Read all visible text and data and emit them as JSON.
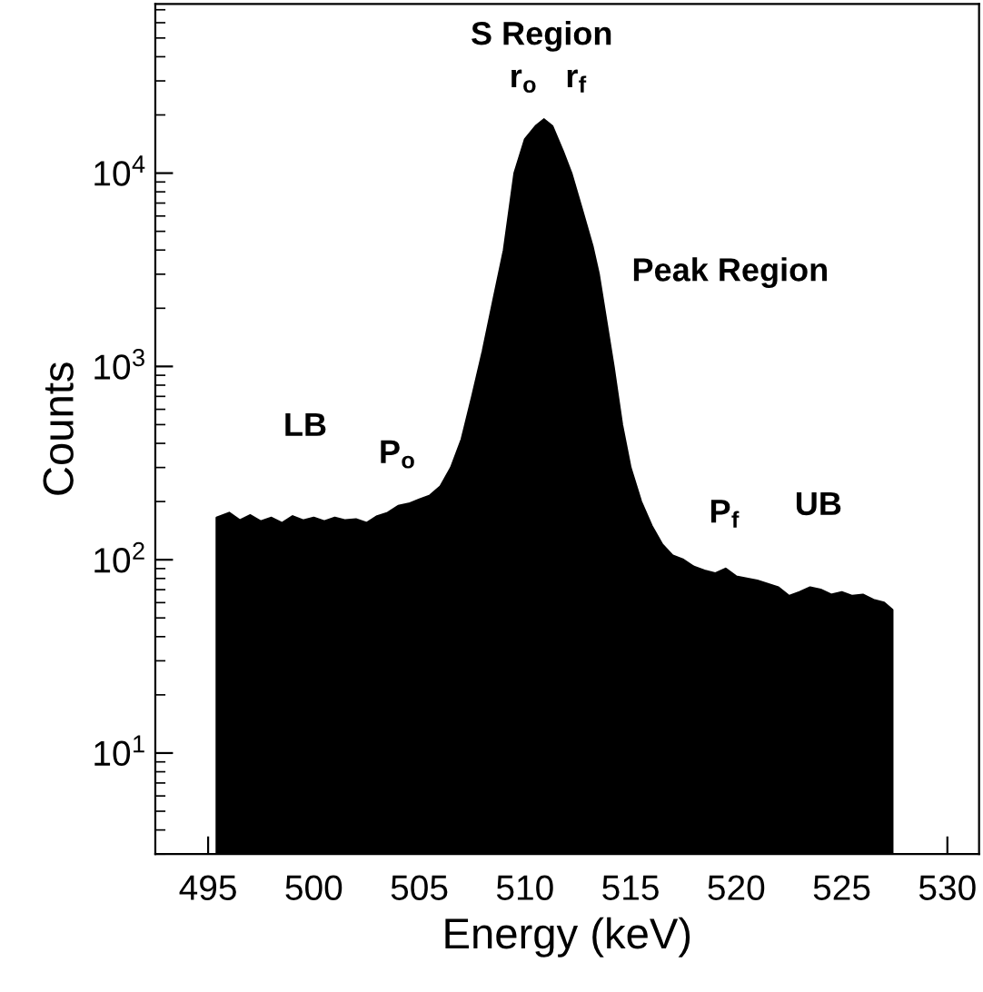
{
  "chart_data": {
    "type": "area",
    "xlabel": "Energy (keV)",
    "ylabel": "Counts",
    "log": "y",
    "color": "#000000",
    "x": [
      495.4,
      496,
      496.5,
      497,
      497.5,
      498,
      498.5,
      499,
      499.5,
      500,
      500.5,
      501,
      501.5,
      502,
      502.5,
      503,
      503.5,
      504,
      504.5,
      505,
      505.5,
      506,
      506.5,
      507,
      507.5,
      508,
      508.5,
      509,
      509.5,
      510,
      510.5,
      510.9,
      511.3,
      511.8,
      512.2,
      512.7,
      513.2,
      513.5,
      514.2,
      514.6,
      515,
      515.5,
      516,
      516.5,
      517,
      517.5,
      518,
      518.5,
      519,
      519.5,
      520,
      520.5,
      521,
      521.5,
      522,
      522.5,
      523,
      523.5,
      524,
      524.5,
      525,
      525.5,
      526,
      526.5,
      527,
      527.4
    ],
    "values": [
      165,
      175,
      160,
      170,
      158,
      165,
      155,
      168,
      160,
      165,
      158,
      165,
      160,
      162,
      155,
      168,
      175,
      190,
      195,
      205,
      215,
      240,
      300,
      420,
      700,
      1200,
      2200,
      4000,
      10000,
      15000,
      17500,
      19000,
      17500,
      13000,
      10000,
      6500,
      4200,
      3000,
      1000,
      500,
      300,
      200,
      150,
      120,
      105,
      100,
      92,
      88,
      85,
      90,
      82,
      80,
      78,
      75,
      72,
      65,
      68,
      72,
      70,
      66,
      68,
      65,
      66,
      62,
      60,
      55
    ],
    "xlim": [
      492.5,
      531.5
    ],
    "xticks": [
      495,
      500,
      505,
      510,
      515,
      520,
      525,
      530
    ],
    "ylim": [
      3,
      75000
    ],
    "yticks": [
      {
        "value": 10,
        "label": "10$^{1}$"
      },
      {
        "value": 100,
        "label": "10$^{2}$"
      },
      {
        "value": 1000,
        "label": "10$^{3}$"
      },
      {
        "value": 10000,
        "label": "10$^{4}$"
      }
    ],
    "annotations": [
      "S Region",
      "r$_{o}$",
      "r$_{f}$",
      "Peak Region",
      "LB",
      "P$_{o}$",
      "P$_{f}$",
      "UB"
    ]
  }
}
